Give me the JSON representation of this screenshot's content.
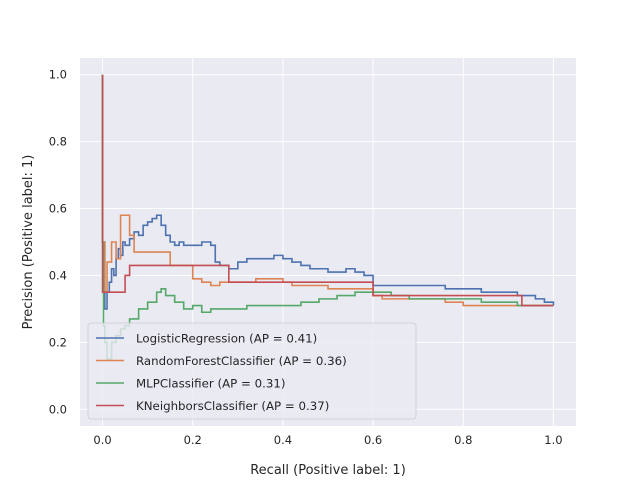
{
  "chart_data": {
    "type": "line",
    "title": "",
    "xlabel": "Recall (Positive label: 1)",
    "ylabel": "Precision (Positive label: 1)",
    "xlim": [
      -0.05,
      1.05
    ],
    "ylim": [
      -0.05,
      1.05
    ],
    "x_ticks": [
      "0.0",
      "0.2",
      "0.4",
      "0.6",
      "0.8",
      "1.0"
    ],
    "y_ticks": [
      "0.0",
      "0.2",
      "0.4",
      "0.6",
      "0.8",
      "1.0"
    ],
    "grid": true,
    "legend_position": "lower-left",
    "style": {
      "plot_background": "#eaeaf2",
      "grid_color": "#ffffff"
    },
    "series": [
      {
        "name": "LogisticRegression (AP = 0.41)",
        "color": "#4c72b0",
        "x": [
          0.0,
          0.0,
          0.005,
          0.01,
          0.015,
          0.02,
          0.025,
          0.03,
          0.035,
          0.04,
          0.045,
          0.05,
          0.06,
          0.07,
          0.08,
          0.09,
          0.1,
          0.11,
          0.12,
          0.13,
          0.14,
          0.15,
          0.16,
          0.17,
          0.18,
          0.2,
          0.22,
          0.24,
          0.25,
          0.26,
          0.28,
          0.3,
          0.32,
          0.34,
          0.36,
          0.38,
          0.4,
          0.42,
          0.44,
          0.46,
          0.5,
          0.54,
          0.56,
          0.58,
          0.6,
          0.6,
          0.64,
          0.68,
          0.72,
          0.76,
          0.8,
          0.84,
          0.88,
          0.92,
          0.96,
          0.98,
          1.0
        ],
        "y": [
          1.0,
          0.5,
          0.3,
          0.35,
          0.38,
          0.42,
          0.4,
          0.45,
          0.48,
          0.46,
          0.5,
          0.49,
          0.51,
          0.53,
          0.52,
          0.55,
          0.56,
          0.57,
          0.58,
          0.55,
          0.52,
          0.5,
          0.49,
          0.5,
          0.49,
          0.49,
          0.5,
          0.49,
          0.44,
          0.43,
          0.42,
          0.44,
          0.45,
          0.45,
          0.45,
          0.46,
          0.45,
          0.44,
          0.43,
          0.42,
          0.41,
          0.42,
          0.41,
          0.4,
          0.39,
          0.37,
          0.37,
          0.37,
          0.37,
          0.36,
          0.36,
          0.35,
          0.35,
          0.34,
          0.33,
          0.32,
          0.31
        ]
      },
      {
        "name": "RandomForestClassifier (AP = 0.36)",
        "color": "#dd8452",
        "x": [
          0.0,
          0.0,
          0.005,
          0.01,
          0.02,
          0.03,
          0.04,
          0.06,
          0.07,
          0.14,
          0.15,
          0.19,
          0.2,
          0.22,
          0.24,
          0.26,
          0.28,
          0.34,
          0.4,
          0.42,
          0.5,
          0.6,
          0.62,
          0.72,
          0.76,
          0.8,
          0.9,
          0.96,
          1.0
        ],
        "y": [
          1.0,
          0.5,
          0.35,
          0.44,
          0.5,
          0.45,
          0.58,
          0.52,
          0.47,
          0.47,
          0.43,
          0.43,
          0.39,
          0.38,
          0.37,
          0.38,
          0.38,
          0.39,
          0.38,
          0.37,
          0.36,
          0.34,
          0.33,
          0.33,
          0.32,
          0.31,
          0.31,
          0.31,
          0.31
        ]
      },
      {
        "name": "MLPClassifier (AP = 0.31)",
        "color": "#55a868",
        "x": [
          0.0,
          0.0,
          0.002,
          0.005,
          0.01,
          0.02,
          0.03,
          0.04,
          0.05,
          0.06,
          0.08,
          0.1,
          0.12,
          0.13,
          0.14,
          0.16,
          0.18,
          0.2,
          0.22,
          0.24,
          0.26,
          0.28,
          0.3,
          0.32,
          0.34,
          0.36,
          0.38,
          0.4,
          0.44,
          0.48,
          0.52,
          0.56,
          0.6,
          0.64,
          0.68,
          0.72,
          0.76,
          0.8,
          0.84,
          0.88,
          0.92,
          0.96,
          1.0
        ],
        "y": [
          1.0,
          0.5,
          0.25,
          0.2,
          0.15,
          0.2,
          0.22,
          0.24,
          0.25,
          0.27,
          0.3,
          0.32,
          0.35,
          0.36,
          0.34,
          0.32,
          0.3,
          0.31,
          0.29,
          0.3,
          0.3,
          0.3,
          0.3,
          0.31,
          0.31,
          0.31,
          0.31,
          0.31,
          0.32,
          0.33,
          0.34,
          0.35,
          0.35,
          0.34,
          0.33,
          0.33,
          0.33,
          0.33,
          0.32,
          0.32,
          0.31,
          0.31,
          0.31
        ]
      },
      {
        "name": "KNeighborsClassifier (AP = 0.37)",
        "color": "#c44e52",
        "x": [
          0.0,
          0.0,
          0.01,
          0.04,
          0.05,
          0.06,
          0.27,
          0.28,
          0.6,
          0.6,
          0.92,
          0.93,
          1.0
        ],
        "y": [
          1.0,
          0.35,
          0.35,
          0.35,
          0.4,
          0.43,
          0.43,
          0.38,
          0.38,
          0.34,
          0.34,
          0.31,
          0.31
        ]
      }
    ]
  }
}
